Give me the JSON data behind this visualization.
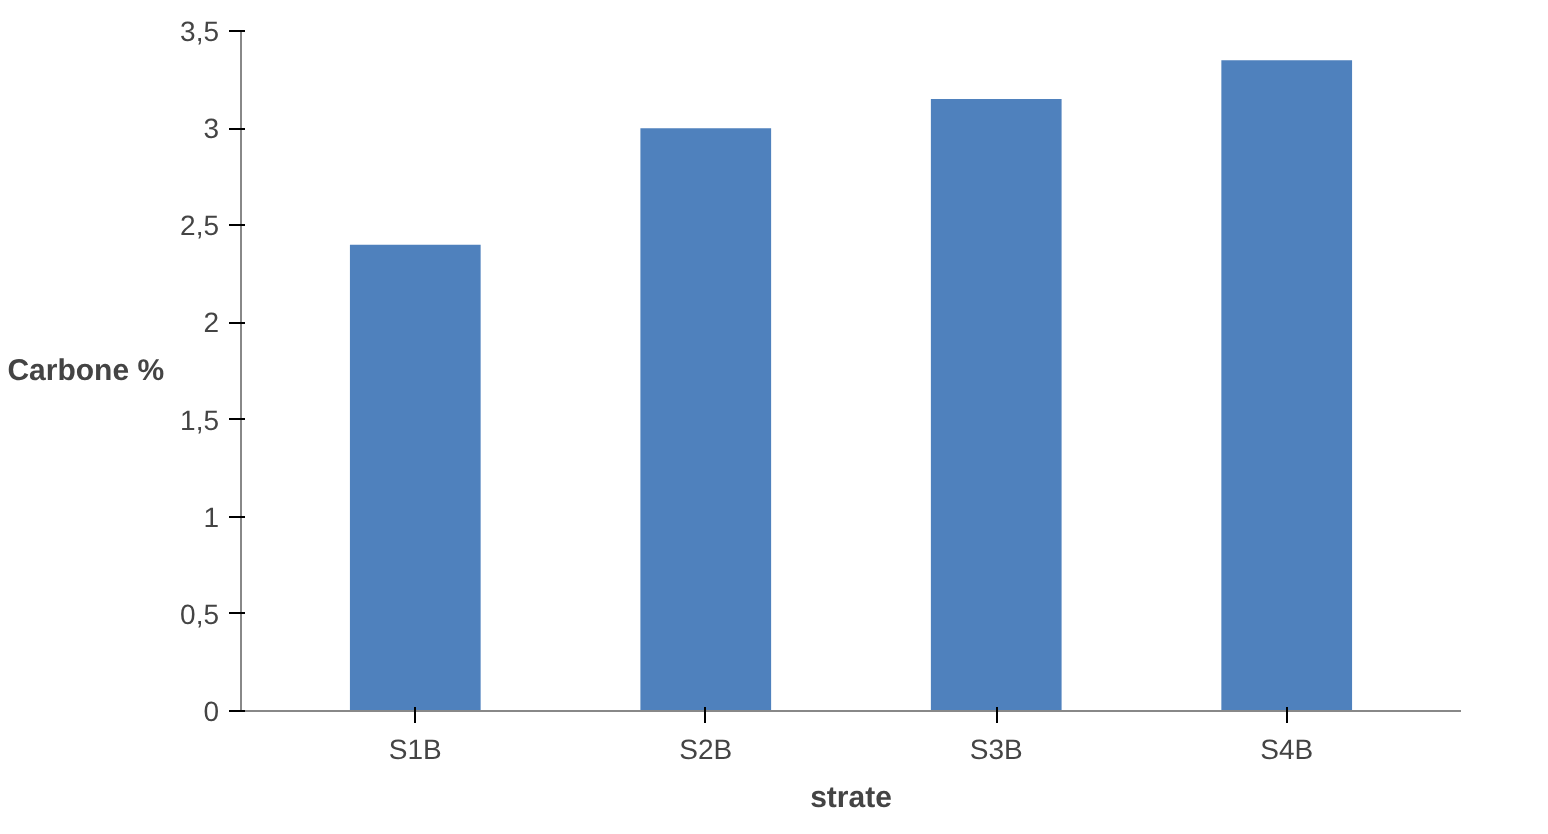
{
  "chart_data": {
    "type": "bar",
    "xlabel": "strate",
    "ylabel": "Carbone %",
    "categories": [
      "S1B",
      "S2B",
      "S3B",
      "S4B"
    ],
    "values": [
      2.4,
      3.0,
      3.15,
      3.35
    ],
    "color": "#4f81bd",
    "ylim": [
      0,
      3.5
    ],
    "yticks": [
      0,
      {
        "value": 0.5,
        "label": "0,5"
      },
      1,
      {
        "value": 1.5,
        "label": "1,5"
      },
      2,
      {
        "value": 2.5,
        "label": "2,5"
      },
      3,
      {
        "value": 3.5,
        "label": "3,5"
      }
    ],
    "grid": false
  }
}
